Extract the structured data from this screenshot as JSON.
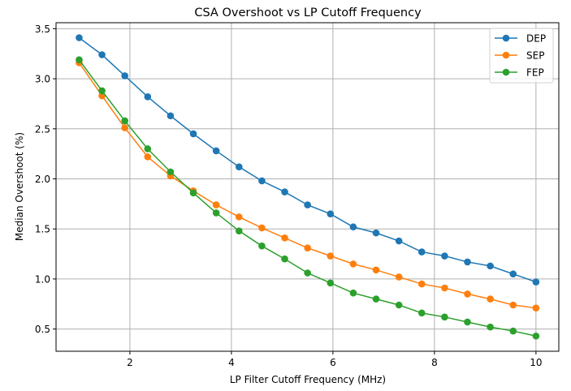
{
  "chart_data": {
    "type": "line",
    "title": "CSA Overshoot vs LP Cutoff Frequency",
    "xlabel": "LP Filter Cutoff Frequency (MHz)",
    "ylabel": "Median Overshoot (%)",
    "xlim": [
      0.545,
      10.45
    ],
    "ylim": [
      0.278,
      3.56
    ],
    "xticks": [
      2,
      4,
      6,
      8,
      10
    ],
    "xtick_labels": [
      "2",
      "4",
      "6",
      "8",
      "10"
    ],
    "yticks": [
      0.5,
      1.0,
      1.5,
      2.0,
      2.5,
      3.0,
      3.5
    ],
    "ytick_labels": [
      "0.5",
      "1.0",
      "1.5",
      "2.0",
      "2.5",
      "3.0",
      "3.5"
    ],
    "grid": true,
    "legend_position": "top-right",
    "x": [
      1.0,
      1.45,
      1.9,
      2.35,
      2.8,
      3.25,
      3.7,
      4.15,
      4.6,
      5.05,
      5.5,
      5.95,
      6.4,
      6.85,
      7.3,
      7.75,
      8.2,
      8.65,
      9.1,
      9.55,
      10.0
    ],
    "series": [
      {
        "name": "DEP",
        "color": "#1f77b4",
        "values": [
          3.41,
          3.24,
          3.03,
          2.82,
          2.63,
          2.45,
          2.28,
          2.12,
          1.98,
          1.87,
          1.74,
          1.65,
          1.52,
          1.46,
          1.38,
          1.27,
          1.23,
          1.17,
          1.13,
          1.05,
          0.97
        ]
      },
      {
        "name": "SEP",
        "color": "#ff7f0e",
        "values": [
          3.16,
          2.83,
          2.51,
          2.22,
          2.03,
          1.88,
          1.74,
          1.62,
          1.51,
          1.41,
          1.31,
          1.23,
          1.15,
          1.09,
          1.02,
          0.95,
          0.91,
          0.85,
          0.8,
          0.74,
          0.71
        ]
      },
      {
        "name": "FEP",
        "color": "#2ca02c",
        "values": [
          3.19,
          2.88,
          2.58,
          2.3,
          2.07,
          1.86,
          1.66,
          1.48,
          1.33,
          1.2,
          1.06,
          0.96,
          0.86,
          0.8,
          0.74,
          0.66,
          0.62,
          0.57,
          0.52,
          0.48,
          0.43
        ]
      }
    ]
  }
}
